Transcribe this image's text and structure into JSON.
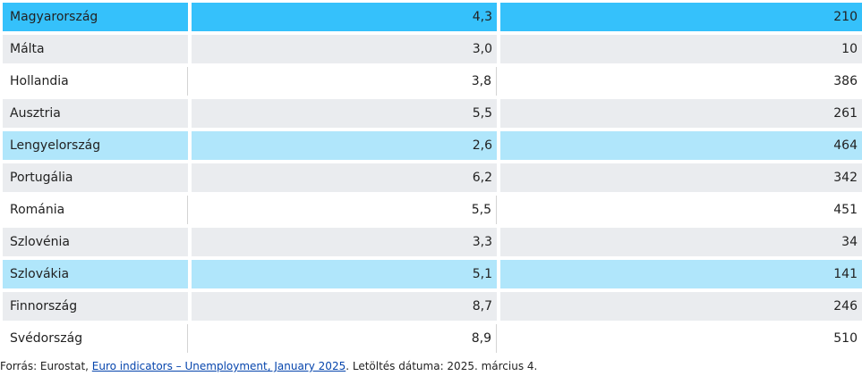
{
  "rows": [
    {
      "country": "Magyarország",
      "rate": "4,3",
      "count": "210",
      "style": "strong"
    },
    {
      "country": "Málta",
      "rate": "3,0",
      "count": "10",
      "style": "gray"
    },
    {
      "country": "Hollandia",
      "rate": "3,8",
      "count": "386",
      "style": "white"
    },
    {
      "country": "Ausztria",
      "rate": "5,5",
      "count": "261",
      "style": "gray"
    },
    {
      "country": "Lengyelország",
      "rate": "2,6",
      "count": "464",
      "style": "light"
    },
    {
      "country": "Portugália",
      "rate": "6,2",
      "count": "342",
      "style": "gray"
    },
    {
      "country": "Románia",
      "rate": "5,5",
      "count": "451",
      "style": "white"
    },
    {
      "country": "Szlovénia",
      "rate": "3,3",
      "count": "34",
      "style": "gray"
    },
    {
      "country": "Szlovákia",
      "rate": "5,1",
      "count": "141",
      "style": "light"
    },
    {
      "country": "Finnország",
      "rate": "8,7",
      "count": "246",
      "style": "gray"
    },
    {
      "country": "Svédország",
      "rate": "8,9",
      "count": "510",
      "style": "white"
    }
  ],
  "colors": {
    "highlight_strong": "#35c1fb",
    "highlight_light": "#b0e6fb",
    "stripe_gray": "#eaecef",
    "link": "#0645ad"
  },
  "source": {
    "prefix": "Forrás: Eurostat, ",
    "link_text": "Euro indicators – Unemployment, January 2025",
    "suffix": ". Letöltés dátuma: 2025. március 4."
  }
}
